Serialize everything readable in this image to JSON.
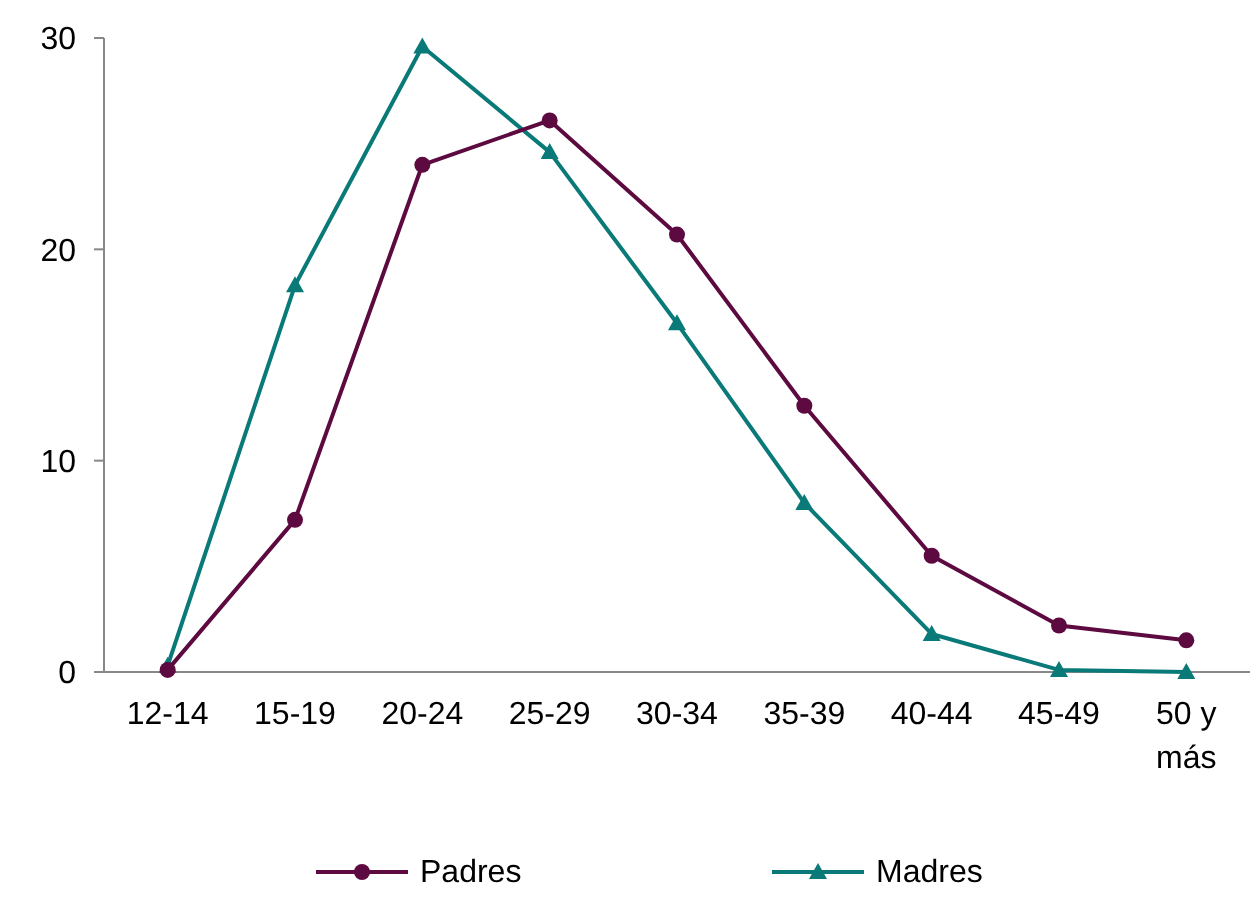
{
  "chart_data": {
    "type": "line",
    "categories": [
      "12-14",
      "15-19",
      "20-24",
      "25-29",
      "30-34",
      "35-39",
      "40-44",
      "45-49",
      "50 y más"
    ],
    "series": [
      {
        "name": "Padres",
        "color": "#5c0a3f",
        "marker": "circle",
        "values": [
          0.1,
          7.2,
          24.0,
          26.1,
          20.7,
          12.6,
          5.5,
          2.2,
          1.5
        ]
      },
      {
        "name": "Madres",
        "color": "#0a7a78",
        "marker": "triangle",
        "values": [
          0.3,
          18.3,
          29.6,
          24.6,
          16.5,
          8.0,
          1.8,
          0.1,
          0.0
        ]
      }
    ],
    "ylim": [
      0,
      30
    ],
    "yticks": [
      0,
      10,
      20,
      30
    ],
    "grid": false,
    "legend": "bottom",
    "line_style": "solid"
  }
}
